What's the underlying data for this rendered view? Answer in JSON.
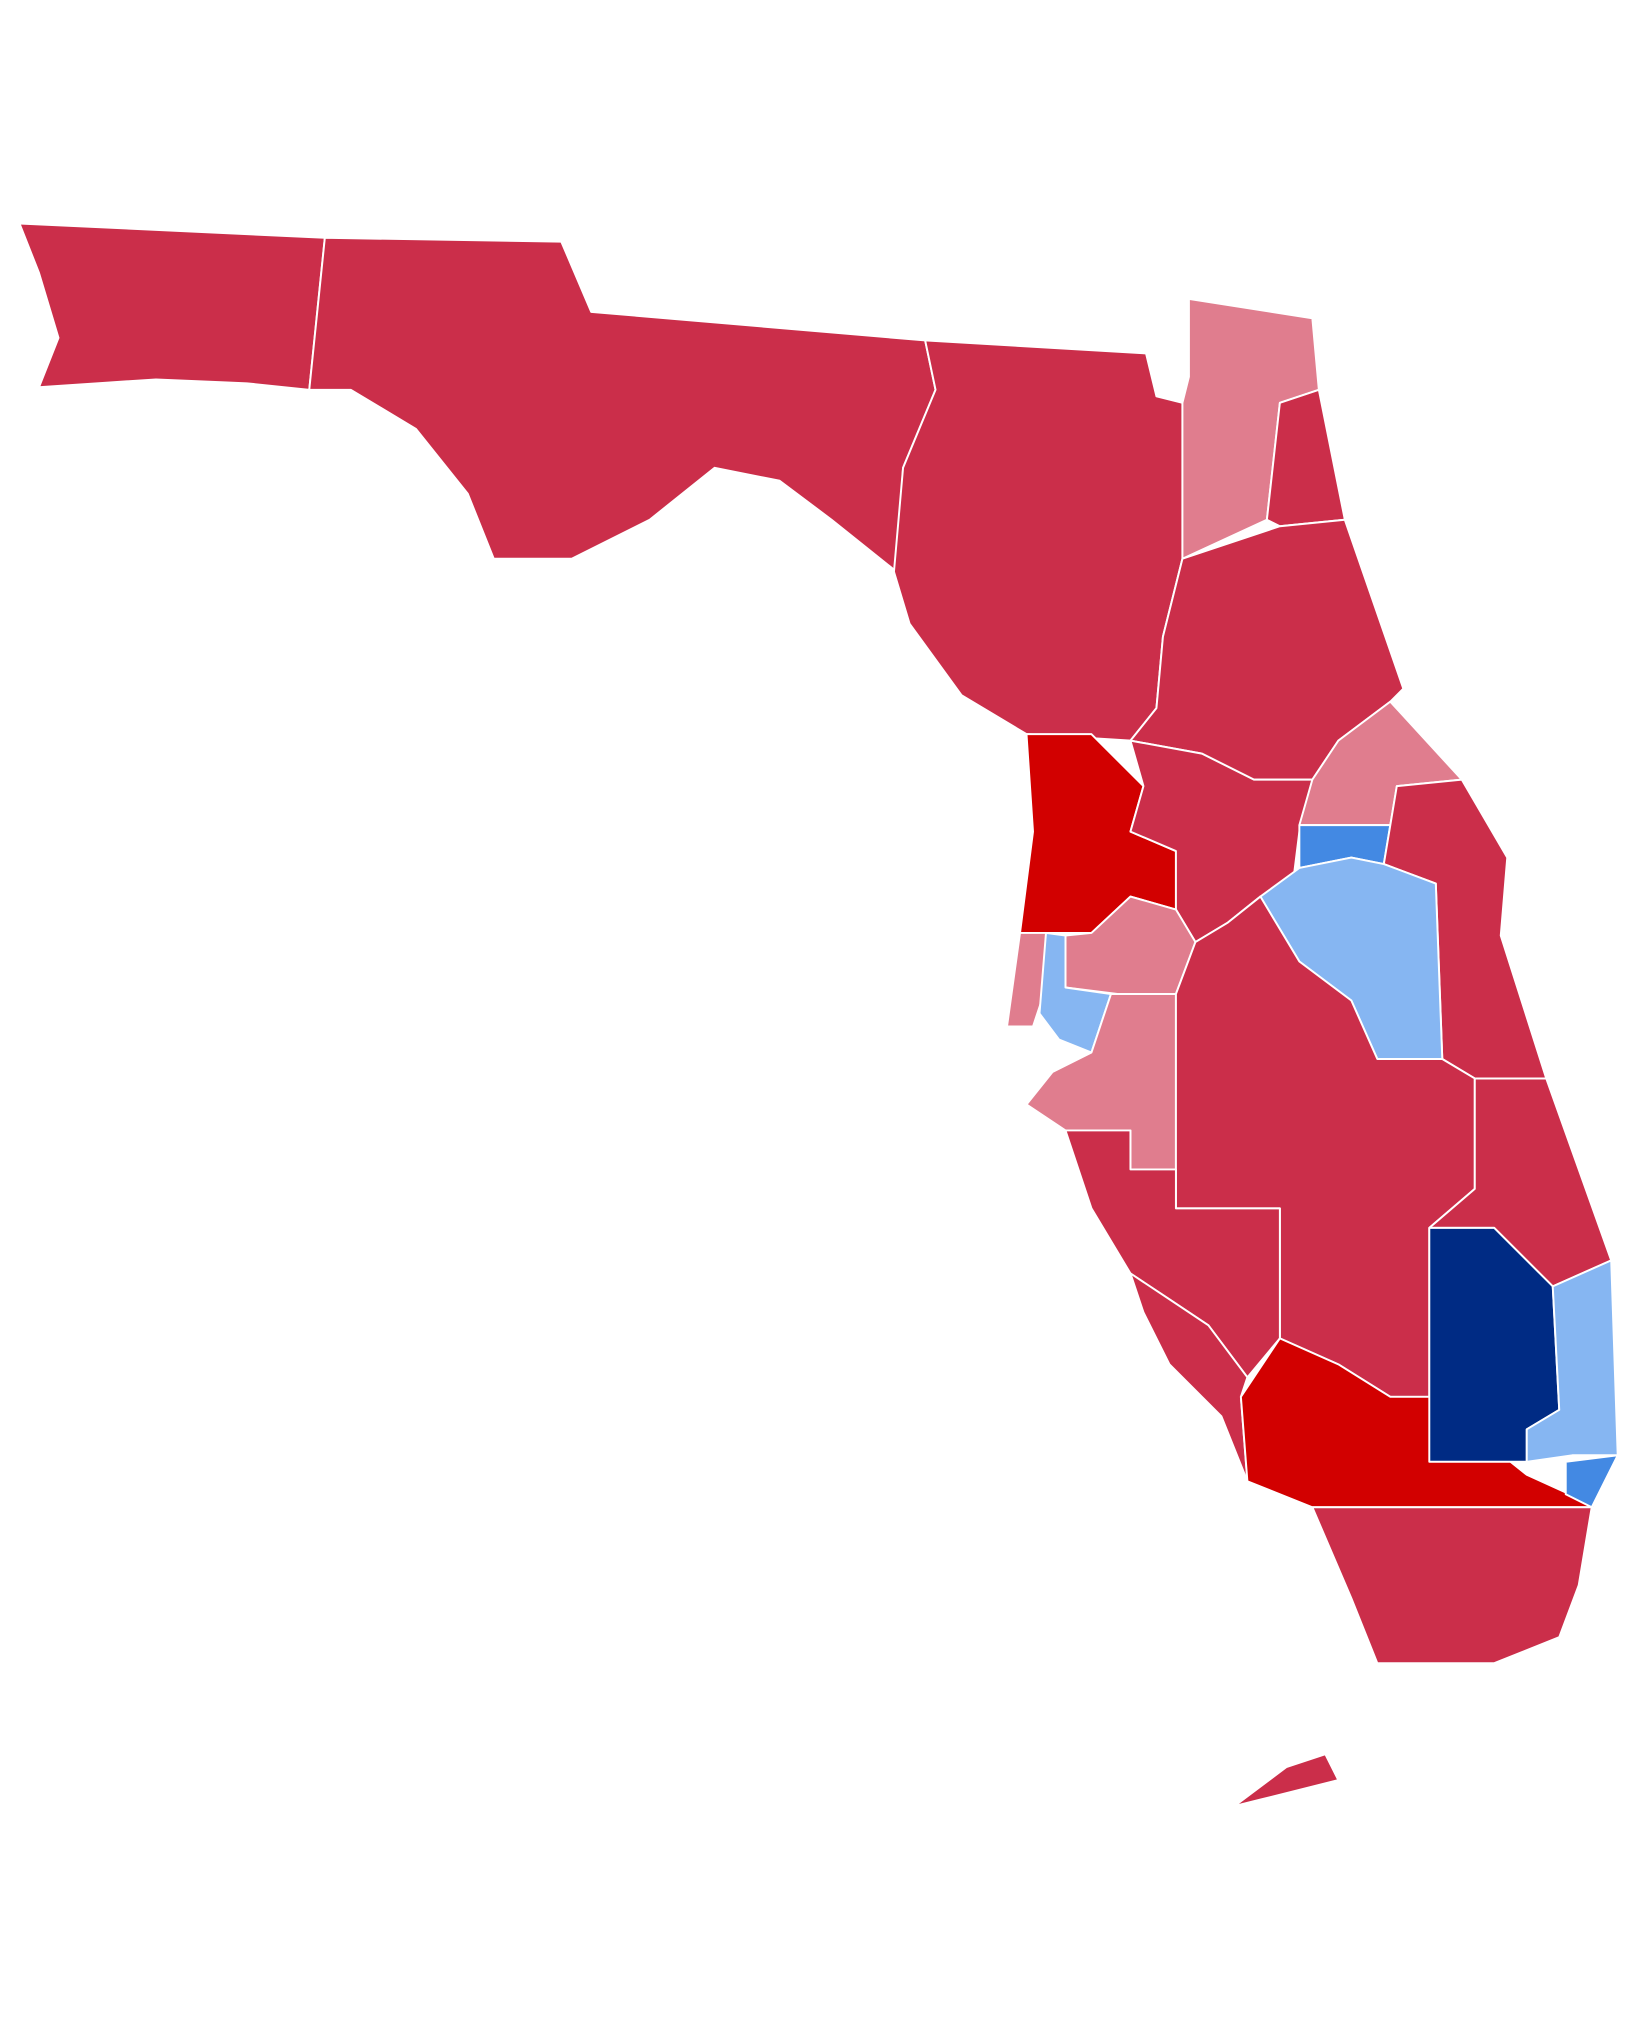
{
  "regions": [
    {
      "color": "#cb2e4a"
    },
    {
      "color": "#cb2e4a"
    },
    {
      "color": "#cb2e4a"
    },
    {
      "color": "#e07d8e"
    },
    {
      "color": "#cb2e4a"
    },
    {
      "color": "#cb2e4a"
    },
    {
      "color": "#d20000"
    },
    {
      "color": "#cb2e4a"
    },
    {
      "color": "#e07d8e"
    },
    {
      "color": "#4389e3"
    },
    {
      "color": "#cb2e4a"
    },
    {
      "color": "#86b6f2"
    },
    {
      "color": "#e07d8e"
    },
    {
      "color": "#e07d8e"
    },
    {
      "color": "#86b6f2"
    },
    {
      "color": "#e07d8e"
    },
    {
      "color": "#cb2e4a"
    },
    {
      "color": "#cb2e4a"
    },
    {
      "color": "#cb2e4a"
    },
    {
      "color": "#cb2e4a"
    },
    {
      "color": "#d20000"
    },
    {
      "color": "#002b84"
    },
    {
      "color": "#86b6f2"
    },
    {
      "color": "#4389e3"
    },
    {
      "color": "#cb2e4a"
    },
    {
      "color": "#cb2e4a"
    }
  ]
}
